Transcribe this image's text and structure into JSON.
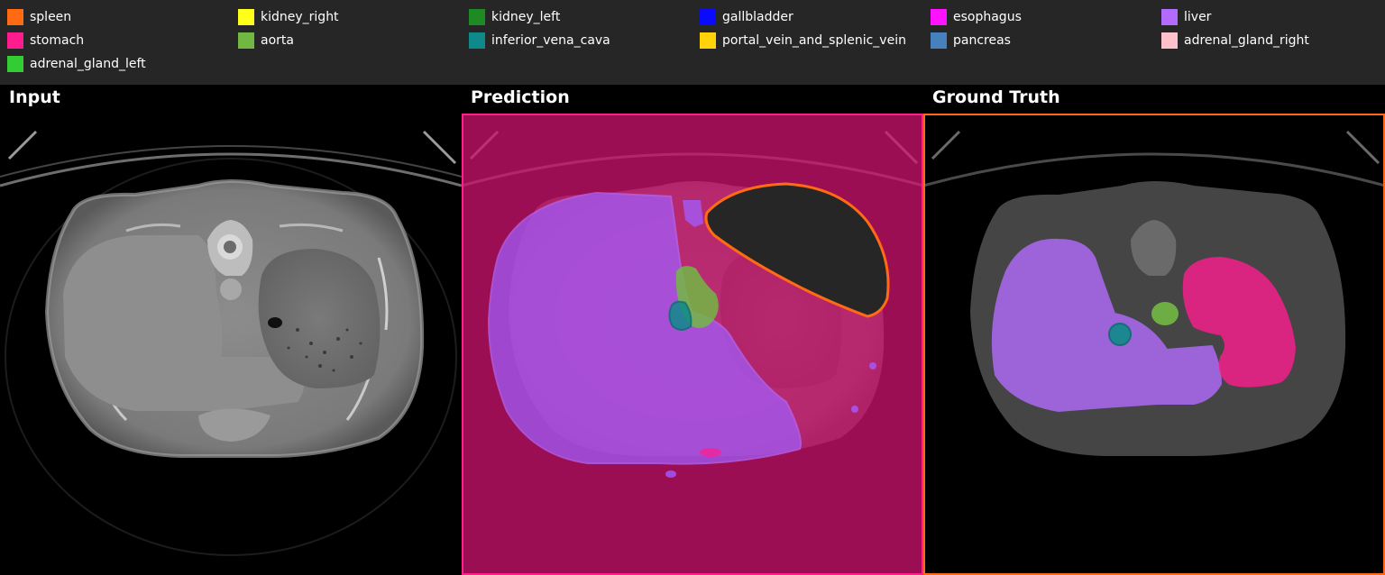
{
  "legend": {
    "items": [
      {
        "label": "spleen",
        "color": "#ff6a13"
      },
      {
        "label": "kidney_right",
        "color": "#ffff1a"
      },
      {
        "label": "kidney_left",
        "color": "#1e8a24"
      },
      {
        "label": "gallbladder",
        "color": "#0a0aff"
      },
      {
        "label": "esophagus",
        "color": "#ff12ff"
      },
      {
        "label": "liver",
        "color": "#b36bff"
      },
      {
        "label": "stomach",
        "color": "#ff1c8f"
      },
      {
        "label": "aorta",
        "color": "#71b843"
      },
      {
        "label": "inferior_vena_cava",
        "color": "#0f8a8a"
      },
      {
        "label": "portal_vein_and_splenic_vein",
        "color": "#ffd20a"
      },
      {
        "label": "pancreas",
        "color": "#4781bd"
      },
      {
        "label": "adrenal_gland_right",
        "color": "#ffc2cc"
      },
      {
        "label": "adrenal_gland_left",
        "color": "#33cc33"
      }
    ]
  },
  "panels": {
    "input": {
      "title": "Input"
    },
    "prediction": {
      "title": "Prediction",
      "border_color": "#ff1f8a"
    },
    "ground_truth": {
      "title": "Ground Truth",
      "border_color": "#ff6a1a"
    }
  }
}
